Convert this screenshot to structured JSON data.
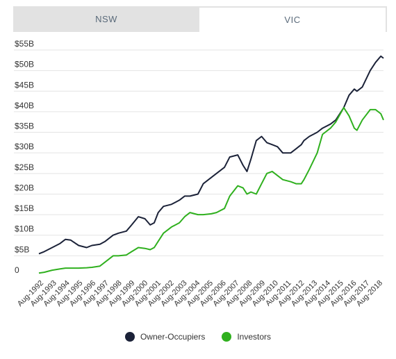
{
  "tabs": [
    {
      "label": "NSW",
      "active": false
    },
    {
      "label": "VIC",
      "active": true
    }
  ],
  "legend": [
    {
      "label": "Owner-Occupiers",
      "color": "#1b2238"
    },
    {
      "label": "Investors",
      "color": "#2fb01e"
    }
  ],
  "chart_data": {
    "type": "line",
    "title": "",
    "xlabel": "",
    "ylabel": "",
    "ylim": [
      0,
      55
    ],
    "y_tick_labels": [
      "0",
      "$5B",
      "$10B",
      "$15B",
      "$20B",
      "$25B",
      "$30B",
      "$35B",
      "$40B",
      "$45B",
      "$50B",
      "$55B"
    ],
    "x_tick_labels": [
      "Aug-1992",
      "Aug-1993",
      "Aug-1994",
      "Aug-1995",
      "Aug-1996",
      "Aug-1997",
      "Aug-1998",
      "Aug-1999",
      "Aug-2000",
      "Aug-2001",
      "Aug-2002",
      "Aug-2003",
      "Aug-2004",
      "Aug-2005",
      "Aug-2006",
      "Aug-2007",
      "Aug-2008",
      "Aug-2009",
      "Aug-2010",
      "Aug-2011",
      "Aug-2012",
      "Aug-2013",
      "Aug-2014",
      "Aug-2015",
      "Aug-2016",
      "Aug-2017",
      "Aug-2018"
    ],
    "grid": "horizontal",
    "legend_position": "bottom",
    "series": [
      {
        "name": "Owner-Occupiers",
        "color": "#1b2238",
        "x": [
          1992.6,
          1993.0,
          1993.6,
          1994.2,
          1994.6,
          1995.0,
          1995.6,
          1996.2,
          1996.6,
          1997.2,
          1997.6,
          1998.2,
          1998.6,
          1999.2,
          1999.6,
          2000.1,
          2000.6,
          2001.0,
          2001.3,
          2001.6,
          2002.0,
          2002.6,
          2003.2,
          2003.6,
          2004.0,
          2004.6,
          2005.0,
          2005.6,
          2006.0,
          2006.6,
          2007.0,
          2007.6,
          2008.0,
          2008.3,
          2008.6,
          2009.0,
          2009.4,
          2009.8,
          2010.2,
          2010.6,
          2011.0,
          2011.6,
          2012.0,
          2012.4,
          2012.6,
          2013.0,
          2013.6,
          2014.0,
          2014.6,
          2015.0,
          2015.6,
          2016.0,
          2016.4,
          2016.6,
          2017.0,
          2017.6,
          2018.0,
          2018.4,
          2018.6
        ],
        "y": [
          5.5,
          6.0,
          7.0,
          8.0,
          9.0,
          8.8,
          7.5,
          7.0,
          7.5,
          7.8,
          8.5,
          10.0,
          10.5,
          11.0,
          12.5,
          14.5,
          14.0,
          12.5,
          13.0,
          15.5,
          17.0,
          17.5,
          18.5,
          19.5,
          19.5,
          20.0,
          22.5,
          24.0,
          25.0,
          26.5,
          29.0,
          29.5,
          27.0,
          25.5,
          28.5,
          33.0,
          34.0,
          32.5,
          32.0,
          31.5,
          30.0,
          30.0,
          31.0,
          32.0,
          33.0,
          34.0,
          35.0,
          36.0,
          37.0,
          38.0,
          41.0,
          44.0,
          45.5,
          45.0,
          46.0,
          50.0,
          52.0,
          53.5,
          53.0
        ]
      },
      {
        "name": "Investors",
        "color": "#2fb01e",
        "x": [
          1992.6,
          1993.0,
          1993.6,
          1994.2,
          1994.6,
          1995.0,
          1995.6,
          1996.2,
          1996.6,
          1997.2,
          1997.6,
          1998.2,
          1998.6,
          1999.2,
          1999.6,
          2000.1,
          2000.6,
          2001.0,
          2001.3,
          2001.6,
          2002.0,
          2002.6,
          2003.2,
          2003.6,
          2004.0,
          2004.6,
          2005.0,
          2005.6,
          2006.0,
          2006.6,
          2007.0,
          2007.6,
          2008.0,
          2008.3,
          2008.6,
          2009.0,
          2009.4,
          2009.8,
          2010.2,
          2010.6,
          2011.0,
          2011.6,
          2012.0,
          2012.4,
          2012.6,
          2013.0,
          2013.6,
          2014.0,
          2014.6,
          2015.0,
          2015.6,
          2016.0,
          2016.4,
          2016.6,
          2017.0,
          2017.6,
          2018.0,
          2018.4,
          2018.6
        ],
        "y": [
          0.8,
          1.0,
          1.5,
          1.8,
          2.0,
          2.0,
          2.0,
          2.1,
          2.2,
          2.5,
          3.5,
          5.0,
          5.0,
          5.2,
          6.0,
          7.0,
          6.8,
          6.5,
          7.0,
          8.5,
          10.5,
          12.0,
          13.0,
          14.5,
          15.5,
          15.0,
          15.0,
          15.2,
          15.5,
          16.5,
          19.5,
          22.0,
          21.5,
          20.0,
          20.5,
          20.0,
          22.5,
          25.0,
          25.5,
          24.5,
          23.5,
          23.0,
          22.5,
          22.5,
          23.5,
          26.0,
          30.0,
          34.5,
          36.0,
          37.5,
          41.0,
          39.0,
          36.0,
          35.5,
          38.0,
          40.5,
          40.5,
          39.5,
          38.0
        ]
      }
    ]
  }
}
